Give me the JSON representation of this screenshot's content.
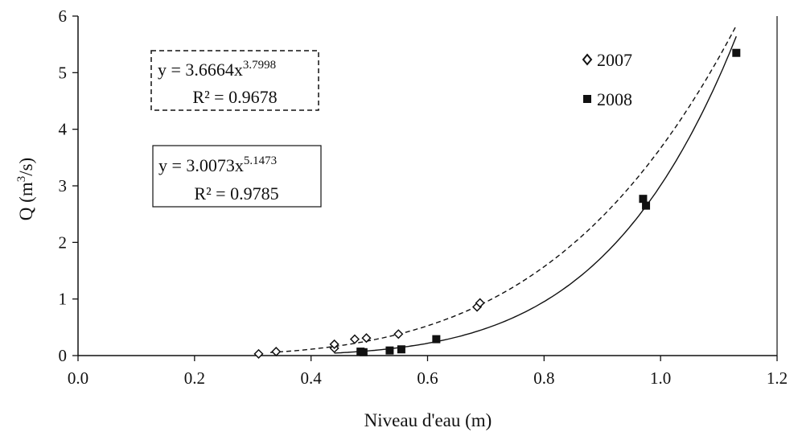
{
  "chart_data": {
    "type": "scatter",
    "title": "",
    "xlabel": "Niveau d'eau (m)",
    "ylabel_main": "Q (m",
    "ylabel_sup": "3",
    "ylabel_tail": "/s)",
    "xlim": [
      0.0,
      1.2
    ],
    "ylim": [
      0,
      6
    ],
    "x_ticks": [
      0.0,
      0.2,
      0.4,
      0.6,
      0.8,
      1.0,
      1.2
    ],
    "x_tick_labels": [
      "0.0",
      "0.2",
      "0.4",
      "0.6",
      "0.8",
      "1.0",
      "1.2"
    ],
    "y_ticks": [
      0,
      1,
      2,
      3,
      4,
      5,
      6
    ],
    "y_tick_labels": [
      "0",
      "1",
      "2",
      "3",
      "4",
      "5",
      "6"
    ],
    "grid": false,
    "legend_position": "top-right",
    "series": [
      {
        "name": "2007",
        "marker": "diamond",
        "points": [
          [
            0.31,
            0.03
          ],
          [
            0.34,
            0.07
          ],
          [
            0.44,
            0.13
          ],
          [
            0.44,
            0.2
          ],
          [
            0.475,
            0.29
          ],
          [
            0.495,
            0.31
          ],
          [
            0.55,
            0.38
          ],
          [
            0.685,
            0.86
          ],
          [
            0.69,
            0.93
          ]
        ],
        "fit": {
          "type": "power",
          "a": 3.6664,
          "b": 3.7998,
          "x_range": [
            0.33,
            1.13
          ],
          "line_style": "dashed"
        }
      },
      {
        "name": "2008",
        "marker": "square",
        "points": [
          [
            0.485,
            0.07
          ],
          [
            0.49,
            0.06
          ],
          [
            0.535,
            0.09
          ],
          [
            0.555,
            0.11
          ],
          [
            0.615,
            0.29
          ],
          [
            0.97,
            2.77
          ],
          [
            0.975,
            2.65
          ],
          [
            1.13,
            5.35
          ]
        ],
        "fit": {
          "type": "power",
          "a": 3.0073,
          "b": 5.1473,
          "x_range": [
            0.44,
            1.13
          ],
          "line_style": "solid"
        }
      }
    ],
    "annotations": [
      {
        "id": "eq2007",
        "text": "y = 3.6664x",
        "exponent": "3.7998",
        "r2": "R² = 0.9678",
        "box": "dashed"
      },
      {
        "id": "eq2008",
        "text": "y = 3.0073x",
        "exponent": "5.1473",
        "r2": "R² = 0.9785",
        "box": "solid"
      }
    ]
  }
}
